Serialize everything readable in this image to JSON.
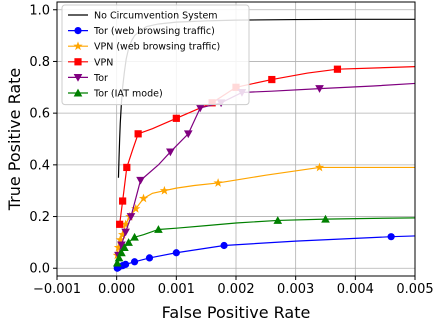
{
  "chart_data": {
    "type": "line",
    "title": "",
    "xlabel": "False Positive Rate",
    "ylabel": "True Positive Rate",
    "xlim": [
      -0.001,
      0.005
    ],
    "ylim": [
      -0.03,
      1.03
    ],
    "xticks": [
      -0.001,
      0.0,
      0.001,
      0.002,
      0.003,
      0.004,
      0.005
    ],
    "xtick_labels": [
      "−0.001",
      "0.000",
      "0.001",
      "0.002",
      "0.003",
      "0.004",
      "0.005"
    ],
    "yticks": [
      0.0,
      0.2,
      0.4,
      0.6,
      0.8,
      1.0
    ],
    "ytick_labels": [
      "0.0",
      "0.2",
      "0.4",
      "0.6",
      "0.8",
      "1.0"
    ],
    "grid": true,
    "legend_position": "top-left",
    "series": [
      {
        "name": "No Circumvention System",
        "color": "#000000",
        "marker": "none",
        "x": [
          3e-05,
          4e-05,
          5e-05,
          6e-05,
          8e-05,
          0.0001,
          0.00013,
          0.00016,
          0.0002,
          0.00025,
          0.0003,
          0.0004,
          0.0005,
          0.0007,
          0.001,
          0.0015,
          0.002,
          0.003,
          0.004,
          0.005
        ],
        "y": [
          0.35,
          0.43,
          0.5,
          0.56,
          0.64,
          0.7,
          0.76,
          0.81,
          0.85,
          0.88,
          0.9,
          0.92,
          0.935,
          0.945,
          0.952,
          0.957,
          0.96,
          0.962,
          0.963,
          0.963
        ],
        "marker_indices": []
      },
      {
        "name": "Tor (web browsing traffic)",
        "color": "#0000ff",
        "marker": "circle",
        "x": [
          1e-05,
          3e-05,
          6e-05,
          0.0001,
          0.00015,
          0.0003,
          0.00055,
          0.001,
          0.0018,
          0.003,
          0.0046,
          0.005
        ],
        "y": [
          0.0,
          0.003,
          0.006,
          0.01,
          0.015,
          0.025,
          0.04,
          0.06,
          0.088,
          0.105,
          0.122,
          0.125
        ],
        "marker_indices": [
          0,
          1,
          3,
          4,
          5,
          6,
          7,
          8,
          10
        ]
      },
      {
        "name": "VPN (web browsing traffic)",
        "color": "#ffa500",
        "marker": "star",
        "x": [
          1e-05,
          3e-05,
          6e-05,
          0.0001,
          0.00015,
          0.00022,
          0.00032,
          0.00045,
          0.0006,
          0.0008,
          0.001,
          0.0013,
          0.0017,
          0.0025,
          0.0034,
          0.0042,
          0.005
        ],
        "y": [
          0.05,
          0.08,
          0.11,
          0.13,
          0.17,
          0.2,
          0.23,
          0.27,
          0.29,
          0.3,
          0.31,
          0.32,
          0.33,
          0.36,
          0.39,
          0.39,
          0.39
        ],
        "marker_indices": [
          0,
          1,
          2,
          3,
          4,
          5,
          6,
          7,
          9,
          12,
          14
        ]
      },
      {
        "name": "VPN",
        "color": "#ff0000",
        "marker": "square",
        "x": [
          5e-05,
          0.0001,
          0.00017,
          0.00027,
          0.00036,
          0.0006,
          0.001,
          0.0013,
          0.0016,
          0.002,
          0.0026,
          0.0032,
          0.0037,
          0.005
        ],
        "y": [
          0.17,
          0.26,
          0.39,
          0.46,
          0.52,
          0.54,
          0.58,
          0.61,
          0.64,
          0.7,
          0.73,
          0.755,
          0.77,
          0.78
        ],
        "marker_indices": [
          0,
          1,
          2,
          4,
          6,
          8,
          9,
          10,
          12
        ]
      },
      {
        "name": "Tor",
        "color": "#800080",
        "marker": "triangle-down",
        "x": [
          3e-05,
          8e-05,
          0.00015,
          0.00024,
          0.0004,
          0.0007,
          0.0009,
          0.0012,
          0.0014,
          0.00175,
          0.0021,
          0.0026,
          0.0034,
          0.0043,
          0.005
        ],
        "y": [
          0.05,
          0.09,
          0.14,
          0.2,
          0.34,
          0.4,
          0.45,
          0.52,
          0.62,
          0.64,
          0.68,
          0.685,
          0.695,
          0.705,
          0.715
        ],
        "marker_indices": [
          0,
          1,
          2,
          3,
          4,
          6,
          7,
          8,
          9,
          10,
          12
        ]
      },
      {
        "name": "Tor (IAT mode)",
        "color": "#008000",
        "marker": "triangle-up",
        "x": [
          1e-05,
          4e-05,
          8e-05,
          0.00013,
          0.0002,
          0.0003,
          0.00045,
          0.0007,
          0.001,
          0.0015,
          0.002,
          0.0027,
          0.0035,
          0.0043,
          0.005
        ],
        "y": [
          0.02,
          0.04,
          0.06,
          0.08,
          0.1,
          0.12,
          0.13,
          0.15,
          0.155,
          0.165,
          0.175,
          0.185,
          0.19,
          0.193,
          0.195
        ],
        "marker_indices": [
          0,
          1,
          2,
          3,
          4,
          5,
          7,
          11,
          12
        ]
      }
    ]
  }
}
